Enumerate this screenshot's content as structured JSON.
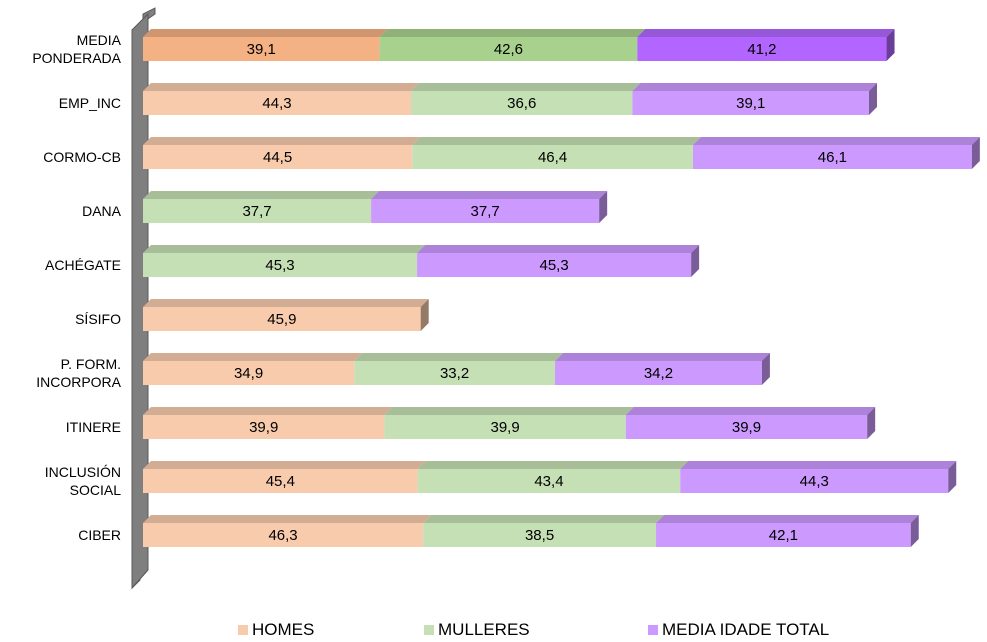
{
  "chart_data": {
    "type": "bar",
    "orientation": "horizontal",
    "stacked": true,
    "three_d": true,
    "categories": [
      "MEDIA PONDERADA",
      "EMP_INC",
      "CORMO-CB",
      "DANA",
      "ACHÉGATE",
      "SÍSIFO",
      "P. FORM. INCORPORA",
      "ITINERE",
      "INCLUSIÓN SOCIAL",
      "CIBER"
    ],
    "category_lines": [
      [
        "MEDIA",
        "PONDERADA"
      ],
      [
        "EMP_INC"
      ],
      [
        "CORMO-CB"
      ],
      [
        "DANA"
      ],
      [
        "ACHÉGATE"
      ],
      [
        "SÍSIFO"
      ],
      [
        "P. FORM.",
        "INCORPORA"
      ],
      [
        "ITINERE"
      ],
      [
        "INCLUSIÓN",
        "SOCIAL"
      ],
      [
        "CIBER"
      ]
    ],
    "series": [
      {
        "name": "HOMES",
        "color": "#F8CBAD",
        "highlight_color": "#F4B183",
        "values": [
          39.1,
          44.3,
          44.5,
          null,
          null,
          45.9,
          34.9,
          39.9,
          45.4,
          46.3
        ],
        "labels": [
          "39,1",
          "44,3",
          "44,5",
          "",
          "",
          "45,9",
          "34,9",
          "39,9",
          "45,4",
          "46,3"
        ]
      },
      {
        "name": "MULLERES",
        "color": "#C5E0B4",
        "highlight_color": "#A9D18E",
        "values": [
          42.6,
          36.6,
          46.4,
          37.7,
          45.3,
          null,
          33.2,
          39.9,
          43.4,
          38.5
        ],
        "labels": [
          "42,6",
          "36,6",
          "46,4",
          "37,7",
          "45,3",
          "",
          "33,2",
          "39,9",
          "43,4",
          "38,5"
        ]
      },
      {
        "name": "MEDIA IDADE TOTAL",
        "color": "#CC99FF",
        "highlight_color": "#B266FF",
        "values": [
          41.2,
          39.1,
          46.1,
          37.7,
          45.3,
          null,
          34.2,
          39.9,
          44.3,
          42.1
        ],
        "labels": [
          "41,2",
          "39,1",
          "46,1",
          "37,7",
          "45,3",
          "",
          "34,2",
          "39,9",
          "44,3",
          "42,1"
        ]
      }
    ],
    "highlighted_category": "MEDIA PONDERADA",
    "legend_position": "bottom",
    "grid": false,
    "xlim": [
      0,
      140
    ]
  }
}
